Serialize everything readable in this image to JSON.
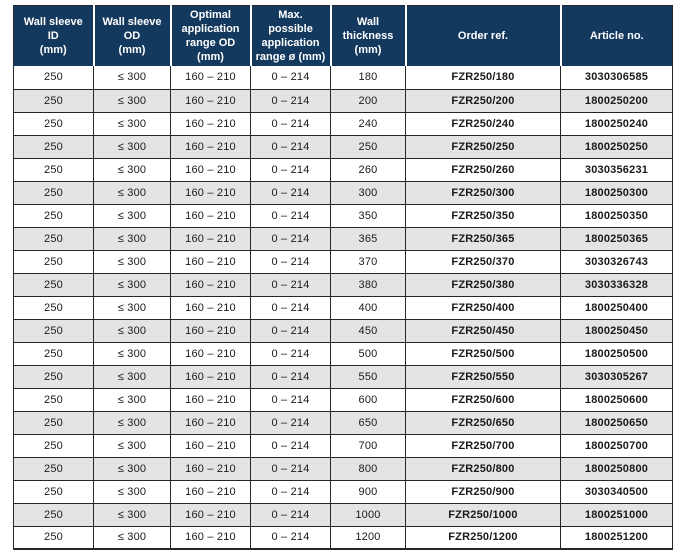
{
  "table": {
    "headers": [
      "Wall sleeve ID\n(mm)",
      "Wall sleeve OD\n(mm)",
      "Optimal\napplication\nrange OD\n(mm)",
      "Max. possible\napplication\nrange ø (mm)",
      "Wall thickness\n(mm)",
      "Order ref.",
      "Article no."
    ],
    "rows": [
      [
        "250",
        "≤ 300",
        "160 – 210",
        "0 – 214",
        "180",
        "FZR250/180",
        "3030306585"
      ],
      [
        "250",
        "≤ 300",
        "160 – 210",
        "0 – 214",
        "200",
        "FZR250/200",
        "1800250200"
      ],
      [
        "250",
        "≤ 300",
        "160 – 210",
        "0 – 214",
        "240",
        "FZR250/240",
        "1800250240"
      ],
      [
        "250",
        "≤ 300",
        "160 – 210",
        "0 – 214",
        "250",
        "FZR250/250",
        "1800250250"
      ],
      [
        "250",
        "≤ 300",
        "160 – 210",
        "0 – 214",
        "260",
        "FZR250/260",
        "3030356231"
      ],
      [
        "250",
        "≤ 300",
        "160 – 210",
        "0 – 214",
        "300",
        "FZR250/300",
        "1800250300"
      ],
      [
        "250",
        "≤ 300",
        "160 – 210",
        "0 – 214",
        "350",
        "FZR250/350",
        "1800250350"
      ],
      [
        "250",
        "≤ 300",
        "160 – 210",
        "0 – 214",
        "365",
        "FZR250/365",
        "1800250365"
      ],
      [
        "250",
        "≤ 300",
        "160 – 210",
        "0 – 214",
        "370",
        "FZR250/370",
        "3030326743"
      ],
      [
        "250",
        "≤ 300",
        "160 – 210",
        "0 – 214",
        "380",
        "FZR250/380",
        "3030336328"
      ],
      [
        "250",
        "≤ 300",
        "160 – 210",
        "0 – 214",
        "400",
        "FZR250/400",
        "1800250400"
      ],
      [
        "250",
        "≤ 300",
        "160 – 210",
        "0 – 214",
        "450",
        "FZR250/450",
        "1800250450"
      ],
      [
        "250",
        "≤ 300",
        "160 – 210",
        "0 – 214",
        "500",
        "FZR250/500",
        "1800250500"
      ],
      [
        "250",
        "≤ 300",
        "160 – 210",
        "0 – 214",
        "550",
        "FZR250/550",
        "3030305267"
      ],
      [
        "250",
        "≤ 300",
        "160 – 210",
        "0 – 214",
        "600",
        "FZR250/600",
        "1800250600"
      ],
      [
        "250",
        "≤ 300",
        "160 – 210",
        "0 – 214",
        "650",
        "FZR250/650",
        "1800250650"
      ],
      [
        "250",
        "≤ 300",
        "160 – 210",
        "0 – 214",
        "700",
        "FZR250/700",
        "1800250700"
      ],
      [
        "250",
        "≤ 300",
        "160 – 210",
        "0 – 214",
        "800",
        "FZR250/800",
        "1800250800"
      ],
      [
        "250",
        "≤ 300",
        "160 – 210",
        "0 – 214",
        "900",
        "FZR250/900",
        "3030340500"
      ],
      [
        "250",
        "≤ 300",
        "160 – 210",
        "0 – 214",
        "1000",
        "FZR250/1000",
        "1800251000"
      ],
      [
        "250",
        "≤ 300",
        "160 – 210",
        "0 – 214",
        "1200",
        "FZR250/1200",
        "1800251200"
      ]
    ],
    "colors": {
      "header_bg": "#14395E",
      "header_text": "#ffffff",
      "row_alt_bg": "#e6e4e2",
      "row_bg": "#ffffff",
      "border": "#262626",
      "body_text": "#1a1a1a"
    }
  }
}
